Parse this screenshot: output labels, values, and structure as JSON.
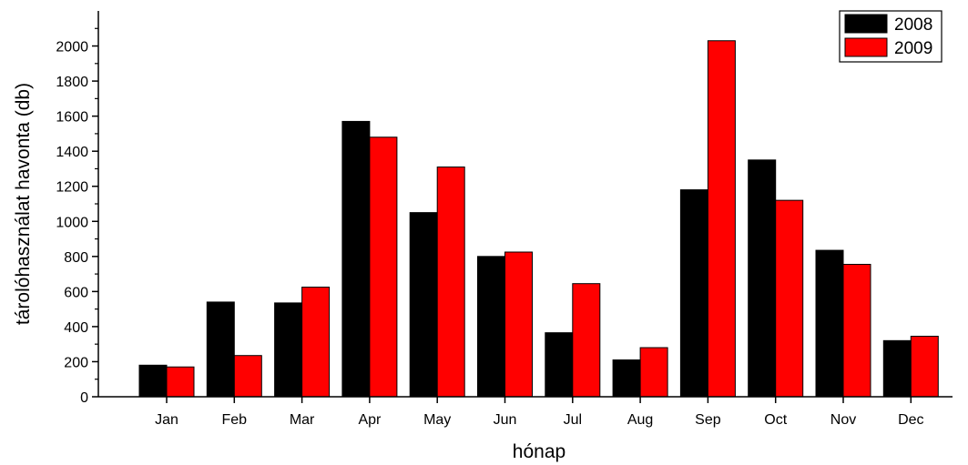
{
  "chart_data": {
    "type": "bar",
    "xlabel": "hónap",
    "ylabel": "tárolóhasználat havonta (db)",
    "categories": [
      "Jan",
      "Feb",
      "Mar",
      "Apr",
      "May",
      "Jun",
      "Jul",
      "Aug",
      "Sep",
      "Oct",
      "Nov",
      "Dec"
    ],
    "series": [
      {
        "name": "2008",
        "color": "#000000",
        "values": [
          180,
          540,
          535,
          1570,
          1050,
          800,
          365,
          210,
          1180,
          1350,
          835,
          320
        ]
      },
      {
        "name": "2009",
        "color": "#ff0000",
        "values": [
          170,
          235,
          625,
          1480,
          1310,
          825,
          645,
          280,
          2030,
          1120,
          755,
          345
        ]
      }
    ],
    "ylim": [
      0,
      2200
    ],
    "yticks": [
      0,
      200,
      400,
      600,
      800,
      1000,
      1200,
      1400,
      1600,
      1800,
      2000
    ],
    "grid": false,
    "legend_position": "top-right"
  }
}
